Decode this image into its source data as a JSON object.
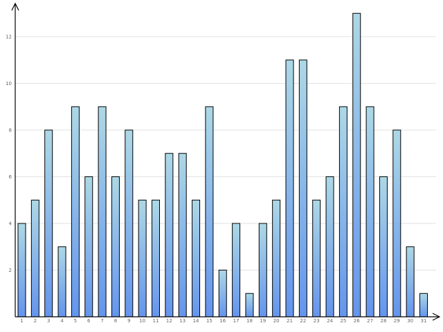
{
  "chart_data": {
    "type": "bar",
    "title": "",
    "xlabel": "",
    "ylabel": "",
    "categories": [
      "1",
      "2",
      "3",
      "4",
      "5",
      "6",
      "7",
      "8",
      "9",
      "10",
      "11",
      "12",
      "13",
      "14",
      "15",
      "16",
      "17",
      "18",
      "19",
      "20",
      "21",
      "22",
      "23",
      "24",
      "25",
      "26",
      "27",
      "28",
      "29",
      "30",
      "31"
    ],
    "values": [
      4,
      5,
      8,
      3,
      9,
      6,
      9,
      6,
      8,
      5,
      5,
      7,
      7,
      5,
      9,
      2,
      4,
      1,
      4,
      5,
      11,
      11,
      5,
      6,
      9,
      13,
      9,
      6,
      8,
      3,
      1
    ],
    "ylim": [
      0,
      13.5
    ],
    "yticks": [
      2,
      4,
      6,
      8,
      10,
      12
    ],
    "grid": true,
    "colors": {
      "bar_top": "#add8e6",
      "bar_bottom": "#6495ed",
      "axis": "#000000",
      "grid": "#e2e2e2"
    }
  }
}
